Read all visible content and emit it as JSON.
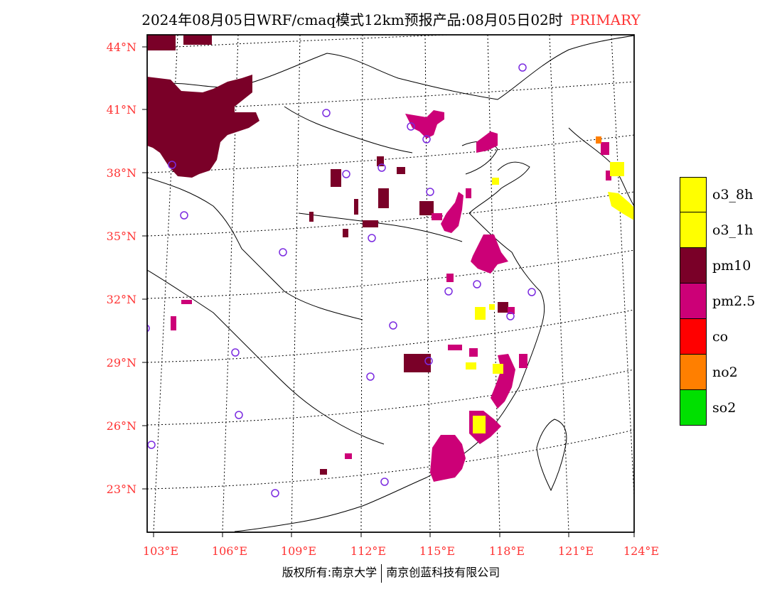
{
  "header": {
    "title": "2024年08月05日WRF/cmaq模式12km预报产品:08月05日02时",
    "tag": "PRIMARY"
  },
  "axes": {
    "lat_labels": [
      "44°N",
      "41°N",
      "38°N",
      "35°N",
      "32°N",
      "29°N",
      "26°N",
      "23°N"
    ],
    "lon_labels": [
      "103°E",
      "106°E",
      "109°E",
      "112°E",
      "115°E",
      "118°E",
      "121°E",
      "124°E"
    ]
  },
  "legend": [
    {
      "label": "o3_8h",
      "color": "#ffff00"
    },
    {
      "label": "o3_1h",
      "color": "#ffff00"
    },
    {
      "label": "pm10",
      "color": "#7a0028"
    },
    {
      "label": "pm2.5",
      "color": "#cc0077"
    },
    {
      "label": "co",
      "color": "#ff0000"
    },
    {
      "label": "no2",
      "color": "#ff7f00"
    },
    {
      "label": "so2",
      "color": "#00e000"
    }
  ],
  "colors": {
    "pm10": "#7a0028",
    "pm25": "#cc0077",
    "o3": "#ffff00",
    "no2": "#ff7f00",
    "station": "#7b2be0",
    "axis_text": "#ff3333"
  },
  "footer": {
    "left": "版权所有:南京大学",
    "right": "南京创蓝科技有限公司"
  }
}
